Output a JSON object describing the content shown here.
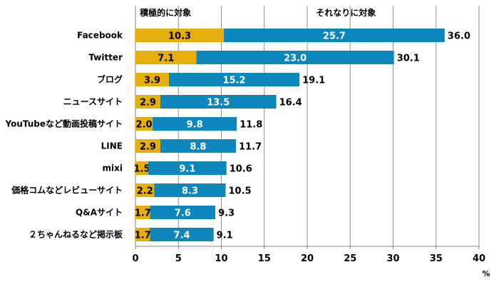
{
  "chart_data": {
    "type": "bar",
    "orientation": "horizontal",
    "stacked": true,
    "categories": [
      "Facebook",
      "Twitter",
      "ブログ",
      "ニュースサイト",
      "YouTubeなど動画投稿サイト",
      "LINE",
      "mixi",
      "価格コムなどレビューサイト",
      "Q&Aサイト",
      "２ちゃんねるなど掲示板"
    ],
    "series": [
      {
        "name": "積極的に対象",
        "color": "#E5AE0C",
        "values": [
          10.3,
          7.1,
          3.9,
          2.9,
          2.0,
          2.9,
          1.5,
          2.2,
          1.7,
          1.7
        ]
      },
      {
        "name": "それなりに対象",
        "color": "#0D86BC",
        "values": [
          25.7,
          23.0,
          15.2,
          13.5,
          9.8,
          8.8,
          9.1,
          8.3,
          7.6,
          7.4
        ]
      }
    ],
    "totals": [
      36.0,
      30.1,
      19.1,
      16.4,
      11.8,
      11.7,
      10.6,
      10.5,
      9.3,
      9.1
    ],
    "xlim": [
      0,
      40
    ],
    "xticks": [
      0,
      5,
      10,
      15,
      20,
      25,
      30,
      35,
      40
    ],
    "xunit": "%",
    "grid": true,
    "legend_position": "top"
  }
}
